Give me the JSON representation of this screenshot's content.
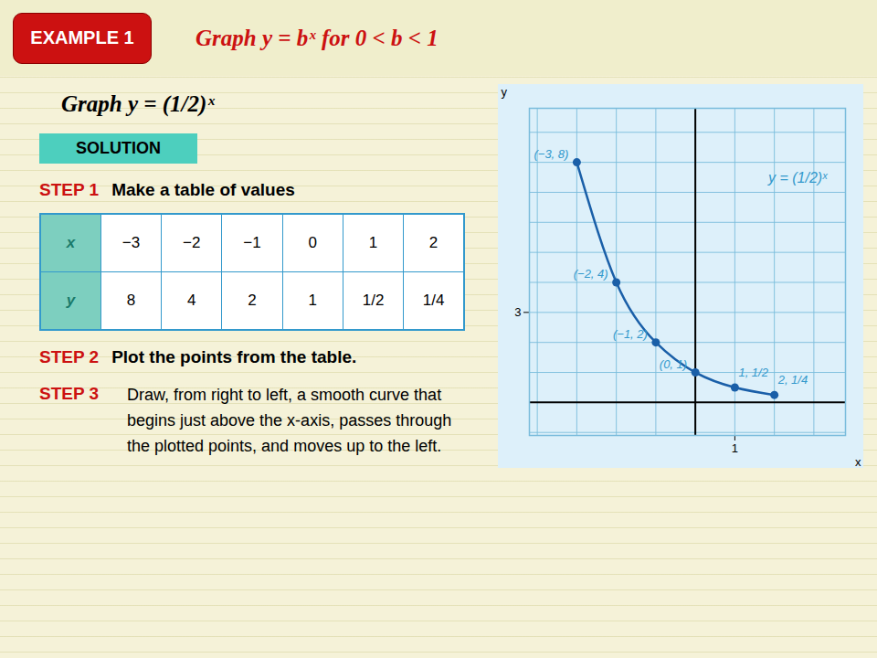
{
  "chart_data": {
    "type": "scatter",
    "title": "Graph y = bˣ  for 0 < b < 1",
    "subtitle": "Graph y = (1/2)ˣ",
    "annotations": [
      "EXAMPLE 1",
      "SOLUTION",
      "STEP 1",
      "Make a table of values",
      "STEP 2",
      "Plot the points from the table.",
      "STEP 3",
      "Draw, from right to left, a smooth curve that",
      "begins just above the x-axis, passes through",
      "the plotted points, and moves up to the left.",
      "y = (1/2)ˣ"
    ],
    "table": [
      [
        "x",
        "−3",
        "−2",
        "−1",
        "0",
        "1",
        "2"
      ],
      [
        "y",
        "8",
        "4",
        "2",
        "1",
        "1/2",
        "1/4"
      ]
    ],
    "xlabel": "x",
    "ylabel": "y",
    "x": [
      -3,
      -2,
      -1,
      0,
      1,
      2
    ],
    "values": [
      8,
      4,
      2,
      1,
      0.5,
      0.25
    ],
    "value_labels": [
      "(−3, 8)",
      "(−2, 4)",
      "(−1, 2)",
      "(0, 1)",
      "1, 1/2",
      "2, 1/4"
    ],
    "data_labels": true,
    "color": "#1a5fa8",
    "marker": "circle",
    "line_style": "solid",
    "xlim": [
      -4.2,
      3.8
    ],
    "ylim": [
      -1.1,
      9.8
    ],
    "xticks": [
      1
    ],
    "yticks": [
      3
    ],
    "grid": true
  }
}
